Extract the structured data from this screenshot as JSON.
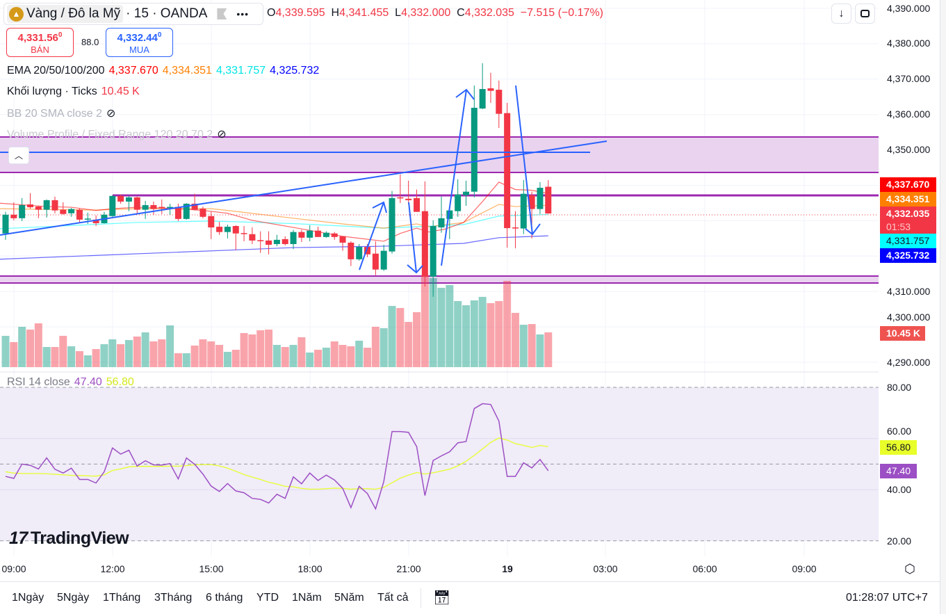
{
  "header": {
    "symbol": "Vàng / Đô la Mỹ",
    "interval_exchange": "· 15 · OANDA",
    "ohlc": {
      "o_label": "O",
      "o": "4,339.595",
      "h_label": "H",
      "h": "4,341.455",
      "l_label": "L",
      "l": "4,332.000",
      "c_label": "C",
      "c": "4,332.035",
      "change": "−7.515 (−0.17%)"
    },
    "sell": {
      "price": "4,331.56",
      "sup": "0",
      "label": "BÁN"
    },
    "spread": "88.0",
    "buy": {
      "price": "4,332.44",
      "sup": "0",
      "label": "MUA"
    }
  },
  "legend": {
    "ema": {
      "label": "EMA 20/50/100/200",
      "v20": "4,337.670",
      "v50": "4,334.351",
      "v100": "4,331.757",
      "v200": "4,325.732"
    },
    "volume": {
      "label": "Khối lượng · Ticks",
      "value": "10.45 K"
    },
    "bb": {
      "label": "BB 20 SMA close 2"
    },
    "vp": {
      "label": "Volume Profile / Fixed Range 120 20 70 2"
    },
    "rsi": {
      "label": "RSI 14 close",
      "value": "47.40",
      "ma": "56.80"
    }
  },
  "price_axis": [
    "4,390.000",
    "4,380.000",
    "4,370.000",
    "4,360.000",
    "4,350.000",
    "4,310.000",
    "4,300.000",
    "4,290.000"
  ],
  "price_tags": {
    "ema20": "4,337.670",
    "ema50": "4,334.351",
    "last": "4,332.035",
    "countdown": "01:53",
    "ema100": "4,331.757",
    "ema200": "4,325.732",
    "volume": "10.45 K"
  },
  "rsi_axis": [
    "80.00",
    "60.00",
    "40.00",
    "20.00"
  ],
  "rsi_tags": {
    "ma": "56.80",
    "rsi": "47.40"
  },
  "time_axis": [
    "09:00",
    "12:00",
    "15:00",
    "18:00",
    "21:00",
    "19",
    "03:00",
    "06:00",
    "09:00"
  ],
  "bottom": {
    "ranges": [
      "1Ngày",
      "5Ngày",
      "1Tháng",
      "3Tháng",
      "6 tháng",
      "YTD",
      "1Năm",
      "5Năm",
      "Tất cả"
    ],
    "clock": "01:28:07 UTC+7"
  },
  "watermark": "TradingView",
  "colors": {
    "up": "#089981",
    "down": "#f23645",
    "ema20": "#ff0000",
    "ema50": "#ff7f00",
    "ema100": "#00ffff",
    "ema200": "#0000ff",
    "rsi": "#9c4fc4",
    "rsi_ma": "#e8ff2a",
    "zone": "#9c27b0",
    "drawing": "#2962ff"
  },
  "chart_data": {
    "type": "candlestick",
    "interval_minutes": 15,
    "first_bar_time": "08:45",
    "price_range": [
      4287,
      4392
    ],
    "candles": [
      [
        4326.4,
        4332.5,
        4324.6,
        4331.7
      ],
      [
        4331.7,
        4335.2,
        4330.1,
        4330.7
      ],
      [
        4330.7,
        4336.4,
        4329.9,
        4334.4
      ],
      [
        4334.6,
        4337.8,
        4333.4,
        4333.8
      ],
      [
        4334.0,
        4334.2,
        4330.7,
        4333.1
      ],
      [
        4333.1,
        4336.0,
        4330.9,
        4335.8
      ],
      [
        4335.8,
        4336.8,
        4332.1,
        4332.9
      ],
      [
        4333.1,
        4335.2,
        4331.7,
        4331.9
      ],
      [
        4332.1,
        4333.6,
        4331.1,
        4333.3
      ],
      [
        4333.1,
        4333.4,
        4329.5,
        4330.3
      ],
      [
        4330.5,
        4332.3,
        4329.1,
        4330.6
      ],
      [
        4330.3,
        4331.5,
        4328.5,
        4329.3
      ],
      [
        4329.3,
        4332.5,
        4329.2,
        4331.7
      ],
      [
        4331.3,
        4337.2,
        4331.1,
        4337.0
      ],
      [
        4337.0,
        4337.4,
        4334.8,
        4335.4
      ],
      [
        4335.4,
        4337.0,
        4332.7,
        4336.6
      ],
      [
        4336.6,
        4336.8,
        4332.1,
        4333.1
      ],
      [
        4333.1,
        4335.6,
        4330.5,
        4334.4
      ],
      [
        4334.4,
        4335.4,
        4331.7,
        4333.3
      ],
      [
        4333.9,
        4336.0,
        4331.9,
        4333.8
      ],
      [
        4333.6,
        4334.8,
        4331.7,
        4333.9
      ],
      [
        4333.9,
        4334.8,
        4329.9,
        4330.5
      ],
      [
        4330.5,
        4335.0,
        4330.3,
        4334.8
      ],
      [
        4334.8,
        4337.6,
        4332.9,
        4333.1
      ],
      [
        4333.4,
        4334.0,
        4330.7,
        4331.1
      ],
      [
        4331.3,
        4332.5,
        4324.8,
        4328.1
      ],
      [
        4328.3,
        4329.7,
        4326.0,
        4326.8
      ],
      [
        4326.8,
        4328.9,
        4325.0,
        4328.3
      ],
      [
        4328.5,
        4328.7,
        4321.7,
        4326.4
      ],
      [
        4326.5,
        4328.5,
        4324.2,
        4326.4
      ],
      [
        4326.2,
        4328.1,
        4323.4,
        4324.4
      ],
      [
        4324.5,
        4327.0,
        4320.9,
        4324.4
      ],
      [
        4324.4,
        4327.0,
        4320.5,
        4323.2
      ],
      [
        4323.4,
        4326.0,
        4322.8,
        4324.6
      ],
      [
        4324.8,
        4325.6,
        4323.0,
        4323.4
      ],
      [
        4323.4,
        4327.4,
        4322.0,
        4326.8
      ],
      [
        4326.8,
        4327.4,
        4324.0,
        4325.2
      ],
      [
        4325.2,
        4328.7,
        4324.2,
        4327.2
      ],
      [
        4327.2,
        4328.3,
        4325.4,
        4325.4
      ],
      [
        4325.4,
        4327.0,
        4325.2,
        4326.6
      ],
      [
        4326.4,
        4326.8,
        4324.6,
        4325.4
      ],
      [
        4325.6,
        4325.6,
        4321.5,
        4323.8
      ],
      [
        4323.8,
        4324.2,
        4317.2,
        4319.1
      ],
      [
        4319.1,
        4323.4,
        4318.7,
        4322.6
      ],
      [
        4322.6,
        4323.4,
        4319.7,
        4320.5
      ],
      [
        4320.7,
        4324.2,
        4314.6,
        4316.2
      ],
      [
        4316.2,
        4323.2,
        4315.8,
        4321.5
      ],
      [
        4321.3,
        4338.4,
        4320.7,
        4336.4
      ],
      [
        4336.6,
        4343.1,
        4335.0,
        4336.4
      ],
      [
        4336.2,
        4341.3,
        4334.8,
        4335.8
      ],
      [
        4336.4,
        4338.8,
        4332.5,
        4332.5
      ],
      [
        4332.7,
        4341.1,
        4311.4,
        4314.2
      ],
      [
        4314.2,
        4330.1,
        4308.5,
        4328.5
      ],
      [
        4328.1,
        4336.8,
        4326.6,
        4330.7
      ],
      [
        4330.5,
        4333.1,
        4324.8,
        4332.9
      ],
      [
        4332.7,
        4341.7,
        4331.1,
        4337.4
      ],
      [
        4337.2,
        4341.3,
        4334.2,
        4338.2
      ],
      [
        4338.2,
        4368.2,
        4336.6,
        4361.9
      ],
      [
        4361.7,
        4374.5,
        4361.5,
        4367.2
      ],
      [
        4367.4,
        4371.8,
        4363.3,
        4366.7
      ],
      [
        4367.0,
        4369.6,
        4356.2,
        4360.2
      ],
      [
        4360.4,
        4363.3,
        4322.4,
        4327.9
      ],
      [
        4328.1,
        4332.7,
        4322.2,
        4327.9
      ],
      [
        4327.8,
        4341.5,
        4326.2,
        4337.6
      ],
      [
        4337.2,
        4338.2,
        4325.0,
        4333.3
      ],
      [
        4333.3,
        4340.9,
        4331.9,
        4339.3
      ],
      [
        4339.595,
        4341.455,
        4332.0,
        4332.035
      ]
    ],
    "volume_k": [
      9.41,
      7.53,
      12.13,
      11.29,
      13.17,
      6.06,
      6.06,
      9.41,
      6.27,
      4.81,
      3.55,
      5.44,
      6.9,
      8.36,
      6.9,
      8.15,
      9.2,
      10.45,
      7.74,
      8.36,
      12.55,
      4.18,
      4.18,
      6.48,
      8.36,
      7.74,
      6.69,
      4.6,
      5.23,
      10.25,
      9.83,
      11.08,
      11.29,
      6.69,
      6.06,
      6.69,
      8.99,
      4.39,
      5.23,
      5.85,
      7.74,
      6.69,
      6.27,
      7.95,
      5.85,
      12.13,
      11.71,
      18.4,
      17.77,
      13.59,
      16.52,
      27.67,
      26.76,
      23.84,
      24.67,
      19.86,
      18.61,
      20.07,
      21.12,
      19.24,
      19.86,
      25.93,
      16.31,
      12.75,
      12.96,
      9.83,
      10.45
    ],
    "rsi": [
      45.2,
      44.4,
      50.0,
      49.5,
      48.1,
      52.4,
      48.0,
      46.5,
      48.4,
      44.0,
      44.0,
      42.6,
      47.0,
      56.3,
      53.9,
      55.4,
      49.2,
      51.3,
      49.7,
      49.6,
      50.2,
      44.2,
      52.4,
      49.9,
      46.1,
      41.4,
      39.3,
      42.4,
      39.5,
      38.8,
      36.6,
      36.2,
      34.8,
      38.2,
      36.6,
      45.0,
      42.3,
      46.5,
      43.6,
      45.7,
      43.8,
      40.5,
      33.0,
      41.3,
      38.5,
      32.5,
      43.2,
      62.7,
      62.7,
      62.4,
      56.8,
      37.7,
      51.4,
      53.2,
      54.8,
      58.3,
      58.8,
      71.7,
      73.6,
      73.3,
      66.8,
      45.2,
      45.2,
      50.5,
      48.5,
      51.8,
      47.4
    ],
    "rsi_ma": [
      47.0,
      46.5,
      46.3,
      46.3,
      46.3,
      46.2,
      46.0,
      45.8,
      45.6,
      45.5,
      45.4,
      45.3,
      45.8,
      47.5,
      48.1,
      48.9,
      49.1,
      49.1,
      49.1,
      49.1,
      49.2,
      49.2,
      49.4,
      49.7,
      49.8,
      49.8,
      49.3,
      48.4,
      47.2,
      45.9,
      44.9,
      44.0,
      42.9,
      42.2,
      41.3,
      41.1,
      40.5,
      40.2,
      40.2,
      40.4,
      40.6,
      40.5,
      40.2,
      40.4,
      40.4,
      40.2,
      40.9,
      42.7,
      44.5,
      45.7,
      46.7,
      46.1,
      46.6,
      47.3,
      48.0,
      49.3,
      51.1,
      53.4,
      55.9,
      58.5,
      60.2,
      59.4,
      58.0,
      57.3,
      56.5,
      57.3,
      56.8
    ],
    "ema": {
      "ema20": [
        [
          -1,
          4335.0
        ],
        [
          5,
          4334.0
        ],
        [
          8,
          4333.8
        ],
        [
          11,
          4332.9
        ],
        [
          13,
          4333.4
        ],
        [
          16,
          4333.8
        ],
        [
          21,
          4333.4
        ],
        [
          24,
          4332.9
        ],
        [
          27,
          4332.1
        ],
        [
          30,
          4330.1
        ],
        [
          35,
          4328.1
        ],
        [
          41,
          4325.6
        ],
        [
          46,
          4324.2
        ],
        [
          48,
          4326.4
        ],
        [
          50,
          4327.9
        ],
        [
          51.5,
          4326.8
        ],
        [
          53.4,
          4327.6
        ],
        [
          55.7,
          4329.5
        ],
        [
          58,
          4335.4
        ],
        [
          60,
          4340.9
        ],
        [
          62,
          4338.8
        ],
        [
          64,
          4338.6
        ],
        [
          66,
          4337.67
        ]
      ],
      "ema50": [
        [
          -1,
          4333.4
        ],
        [
          11,
          4333.0
        ],
        [
          16,
          4333.4
        ],
        [
          25,
          4333.4
        ],
        [
          27,
          4332.9
        ],
        [
          35,
          4330.7
        ],
        [
          41,
          4329.1
        ],
        [
          46,
          4327.9
        ],
        [
          50,
          4329.1
        ],
        [
          51.5,
          4328.3
        ],
        [
          55.7,
          4329.5
        ],
        [
          60,
          4334.6
        ],
        [
          62,
          4334.0
        ],
        [
          66,
          4334.351
        ]
      ],
      "ema100": [
        [
          -1,
          4327.7
        ],
        [
          16,
          4329.5
        ],
        [
          25,
          4329.9
        ],
        [
          35,
          4329.2
        ],
        [
          46,
          4327.9
        ],
        [
          55.7,
          4328.9
        ],
        [
          60,
          4331.3
        ],
        [
          66,
          4331.757
        ]
      ],
      "ema200": [
        [
          -1,
          4319.1
        ],
        [
          35,
          4322.4
        ],
        [
          46,
          4322.8
        ],
        [
          55.7,
          4323.6
        ],
        [
          60,
          4325.2
        ],
        [
          66,
          4325.732
        ]
      ]
    },
    "zones": [
      [
        4343.7,
        4353.7
      ],
      [
        4312.4,
        4314.4
      ]
    ],
    "support_line": 4337.2,
    "resistance_line": 4349.4
  }
}
